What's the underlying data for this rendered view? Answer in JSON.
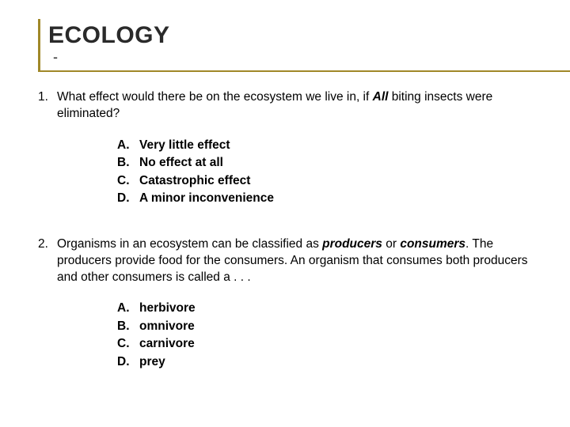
{
  "title": "ECOLOGY",
  "title_suffix": "-",
  "colors": {
    "accent": "#a08828",
    "text": "#000000",
    "title_text": "#2a2a2a",
    "background": "#ffffff"
  },
  "typography": {
    "title_fontsize": 30,
    "body_fontsize": 15.5,
    "font_family": "Arial"
  },
  "questions": [
    {
      "number": "1.",
      "text_parts": [
        {
          "t": "What effect would there be on the ecosystem we live in, if ",
          "style": "normal"
        },
        {
          "t": "All",
          "style": "bi"
        },
        {
          "t": " biting insects were eliminated?",
          "style": "normal"
        }
      ],
      "options": [
        {
          "letter": "A.",
          "text": "Very little effect"
        },
        {
          "letter": "B.",
          "text": "No effect at all"
        },
        {
          "letter": "C.",
          "text": "Catastrophic effect"
        },
        {
          "letter": "D.",
          "text": "A minor inconvenience"
        }
      ]
    },
    {
      "number": "2.",
      "text_parts": [
        {
          "t": "Organisms in an ecosystem can be classified as ",
          "style": "normal"
        },
        {
          "t": "producers",
          "style": "bi"
        },
        {
          "t": " or ",
          "style": "normal"
        },
        {
          "t": "consumers",
          "style": "bi"
        },
        {
          "t": ". The producers provide food for the consumers. An organism that consumes both producers and other consumers is called a . . .",
          "style": "normal"
        }
      ],
      "options": [
        {
          "letter": "A.",
          "text": "herbivore"
        },
        {
          "letter": "B.",
          "text": "omnivore"
        },
        {
          "letter": "C.",
          "text": "carnivore"
        },
        {
          "letter": "D.",
          "text": "prey"
        }
      ]
    }
  ]
}
